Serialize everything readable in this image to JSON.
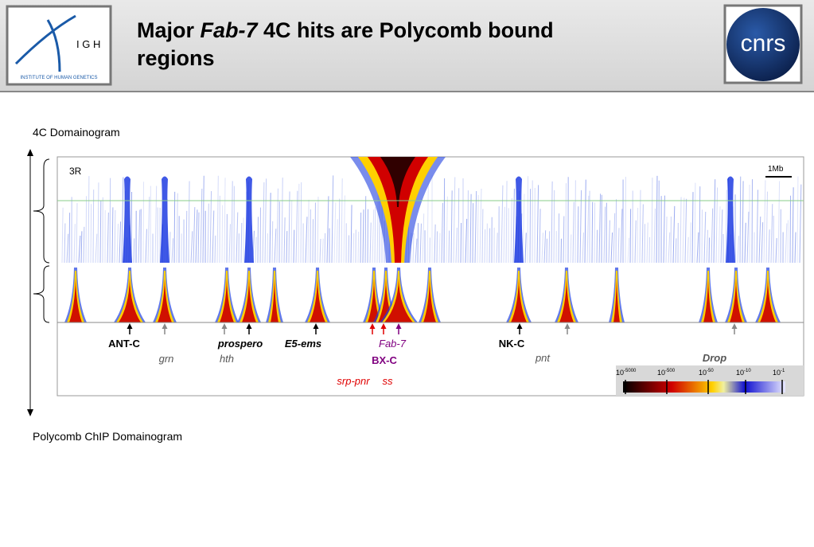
{
  "header": {
    "title_lines": [
      [
        "Major ",
        "Fab-7",
        " 4C hits are Polycomb bound"
      ],
      [
        "regions"
      ]
    ],
    "left_logo": {
      "letters": "I G H",
      "caption": "INSTITUTE OF HUMAN GENETICS"
    },
    "right_logo": "cnrs"
  },
  "labels": {
    "top": "4C Domainogram",
    "bottom": "Polycomb ChIP Domainogram",
    "chromosome": "3R",
    "scale_bar": "1Mb"
  },
  "genes": [
    "ANT-C",
    "grn",
    "prospero",
    "hth",
    "E5-ems",
    "Fab-7",
    "BX-C",
    "srp-pnr",
    "ss",
    "NK-C",
    "pnt",
    "Drop"
  ],
  "colorbar": [
    {
      "base": "10",
      "exp": "-5000"
    },
    {
      "base": "10",
      "exp": "-500"
    },
    {
      "base": "10",
      "exp": "-50"
    },
    {
      "base": "10",
      "exp": "-10"
    },
    {
      "base": "10",
      "exp": "-1"
    }
  ]
}
